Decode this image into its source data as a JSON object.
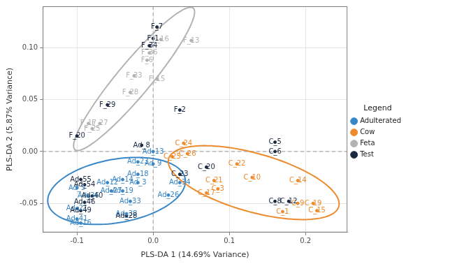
{
  "chart_data": {
    "type": "scatter",
    "x_label": "PLS-DA 1 (14.69% Variance)",
    "y_label": "PLS-DA 2 (5.87% Variance)",
    "legend_title": "Legend",
    "legend": "right",
    "grid": true,
    "xlim": [
      -0.145,
      0.255
    ],
    "ylim": [
      -0.078,
      0.14
    ],
    "xticks": [
      -0.1,
      {
        "value": 0,
        "label": "0.0"
      },
      0.1,
      0.2
    ],
    "yticks": [
      -0.05,
      {
        "value": 0,
        "label": "0.00"
      },
      0.05,
      {
        "value": 0.1,
        "label": "0.10"
      }
    ],
    "series": [
      {
        "name": "Adulterated",
        "color": "#3a87c8",
        "marker": "label",
        "labels": [
          "Ad_13",
          "Ad_23",
          "Ad_9",
          "Ad_18",
          "Ad_14",
          "Ad_3",
          "Ad_34",
          "Ad_19",
          "Ad_27",
          "Ad_36",
          "Ad_26",
          "Ad_33",
          "Ad_21",
          "Ad_41",
          "Ad_16",
          "Ad_38",
          "Ad_5",
          "Ad_12"
        ],
        "x": [
          0.0,
          -0.02,
          0.0,
          -0.02,
          -0.04,
          -0.02,
          0.035,
          -0.04,
          -0.055,
          -0.085,
          0.02,
          -0.03,
          -0.1,
          -0.1,
          -0.095,
          -0.035,
          -0.1,
          -0.06
        ],
        "y": [
          0.0,
          -0.01,
          -0.012,
          -0.022,
          -0.027,
          -0.03,
          -0.03,
          -0.038,
          -0.038,
          -0.043,
          -0.042,
          -0.048,
          -0.055,
          -0.065,
          -0.069,
          -0.06,
          -0.035,
          -0.03
        ],
        "ellipse": {
          "center": [
            -0.048,
            -0.038
          ],
          "axis1": [
            0.09,
            0.012
          ],
          "axis2": [
            -0.008,
            0.03
          ]
        }
      },
      {
        "name": "Cow",
        "color": "#ed8a2c",
        "marker": "label",
        "labels": [
          "C_24",
          "C_26",
          "C_25",
          "C_22",
          "C_21",
          "C_10",
          "C_14",
          "C_3",
          "C_17",
          "C_19",
          "C_15",
          "C_1",
          "C_9"
        ],
        "x": [
          0.04,
          0.045,
          0.025,
          0.11,
          0.08,
          0.13,
          0.19,
          0.085,
          0.07,
          0.21,
          0.215,
          0.17,
          0.19
        ],
        "y": [
          0.008,
          -0.002,
          -0.005,
          -0.012,
          -0.028,
          -0.025,
          -0.028,
          -0.036,
          -0.04,
          -0.05,
          -0.057,
          -0.058,
          -0.05
        ],
        "ellipse": {
          "center": [
            0.132,
            -0.03
          ],
          "axis1": [
            0.112,
            -0.022
          ],
          "axis2": [
            0.006,
            0.028
          ]
        }
      },
      {
        "name": "Feta",
        "color": "#b3b3b3",
        "marker": "label",
        "labels": [
          "F_16",
          "F_13",
          "F_36",
          "F_6",
          "F_33",
          "F_15",
          "F_28",
          "F_17",
          "F_25",
          "F_27"
        ],
        "x": [
          0.01,
          0.05,
          -0.005,
          -0.008,
          -0.025,
          0.005,
          -0.03,
          -0.085,
          -0.08,
          -0.07
        ],
        "y": [
          0.108,
          0.107,
          0.095,
          0.088,
          0.073,
          0.07,
          0.057,
          0.027,
          0.022,
          0.027
        ],
        "ellipse": {
          "center": [
            -0.025,
            0.07
          ],
          "axis1": [
            0.078,
            0.068
          ],
          "axis2": [
            0.015,
            -0.012
          ]
        }
      },
      {
        "name": "Test",
        "color": "#1b2a41",
        "marker": "label",
        "labels": [
          "F_7",
          "F_1",
          "F_34",
          "F_29",
          "F_2",
          "F_20",
          "Ad_8",
          "Ad_55",
          "Ad_54",
          "Ad_46",
          "Ad_40",
          "Ad_28",
          "Ad_49",
          "C_5",
          "C_6",
          "C_20",
          "C_23",
          "C_8",
          "C_12"
        ],
        "x": [
          0.005,
          0.0,
          -0.005,
          -0.06,
          0.035,
          -0.1,
          -0.015,
          -0.095,
          -0.09,
          -0.09,
          -0.08,
          -0.035,
          -0.095,
          0.16,
          0.16,
          0.07,
          0.035,
          0.16,
          0.178
        ],
        "y": [
          0.12,
          0.109,
          0.102,
          0.045,
          0.04,
          0.015,
          0.006,
          -0.027,
          -0.032,
          -0.049,
          -0.043,
          -0.062,
          -0.057,
          0.009,
          0.0,
          -0.015,
          -0.022,
          -0.048,
          -0.048
        ]
      }
    ]
  }
}
